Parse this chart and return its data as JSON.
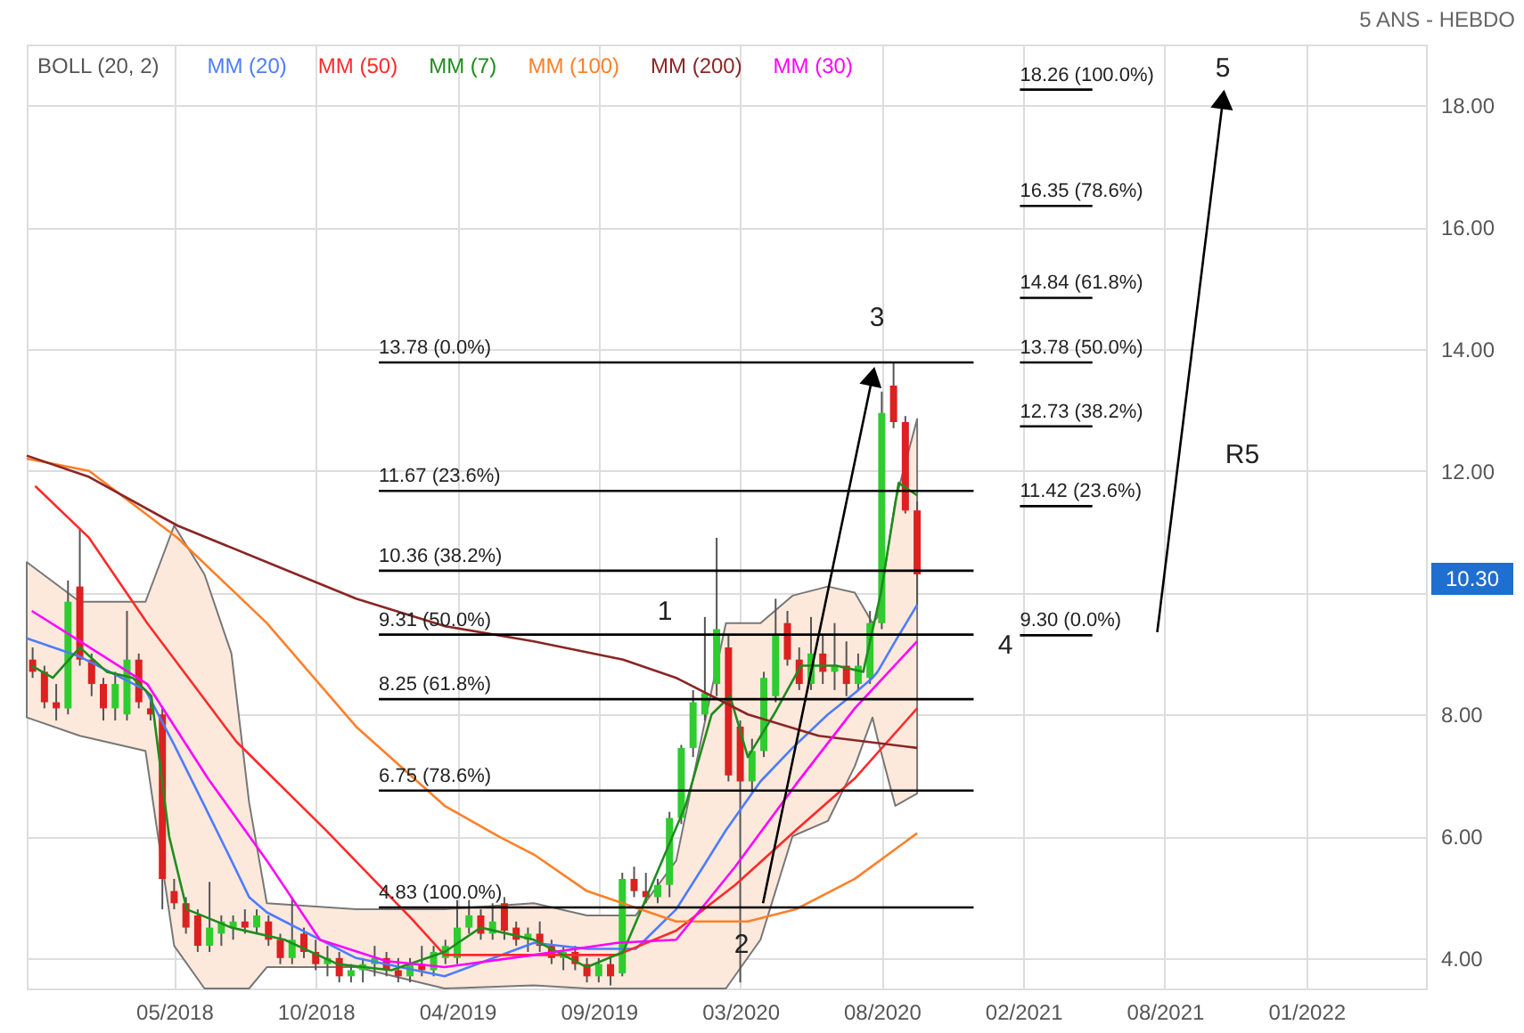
{
  "chart_data": {
    "type": "candlestick",
    "legend": "top left",
    "legend_title": "BOLL (20, 2)",
    "grid": true,
    "xlim": [
      "2017-11-20",
      "2022-06-08"
    ],
    "ylim": [
      3.5,
      19.0
    ],
    "xticks": [
      {
        "value": "2018-05-14",
        "label": "05/2018"
      },
      {
        "value": "2018-10-29",
        "label": "10/2018"
      },
      {
        "value": "2019-04-15",
        "label": "04/2019"
      },
      {
        "value": "2019-09-30",
        "label": "09/2019"
      },
      {
        "value": "2020-03-16",
        "label": "03/2020"
      },
      {
        "value": "2020-08-31",
        "label": "08/2020"
      },
      {
        "value": "2021-02-15",
        "label": "02/2021"
      },
      {
        "value": "2021-08-02",
        "label": "08/2021"
      },
      {
        "value": "2022-01-17",
        "label": "01/2022"
      }
    ],
    "yticks": [
      {
        "value": 4,
        "label": "4.00"
      },
      {
        "value": 6,
        "label": "6.00"
      },
      {
        "value": 8,
        "label": "8.00"
      },
      {
        "value": 10,
        "label": null
      },
      {
        "value": 12,
        "label": "12.00"
      },
      {
        "value": 14,
        "label": "14.00"
      },
      {
        "value": 16,
        "label": "16.00"
      },
      {
        "value": 18,
        "label": "18.00"
      }
    ],
    "x": [
      "2017-11-27",
      "2017-12-11",
      "2017-12-25",
      "2018-01-08",
      "2018-01-22",
      "2018-02-05",
      "2018-02-19",
      "2018-03-05",
      "2018-03-19",
      "2018-04-02",
      "2018-04-16",
      "2018-04-30",
      "2018-05-14",
      "2018-05-28",
      "2018-06-11",
      "2018-06-25",
      "2018-07-09",
      "2018-07-23",
      "2018-08-06",
      "2018-08-20",
      "2018-09-03",
      "2018-09-17",
      "2018-10-01",
      "2018-10-15",
      "2018-10-29",
      "2018-11-12",
      "2018-11-26",
      "2018-12-10",
      "2018-12-24",
      "2019-01-07",
      "2019-01-21",
      "2019-02-04",
      "2019-02-18",
      "2019-03-04",
      "2019-03-18",
      "2019-04-01",
      "2019-04-15",
      "2019-04-29",
      "2019-05-13",
      "2019-05-27",
      "2019-06-10",
      "2019-06-24",
      "2019-07-08",
      "2019-07-22",
      "2019-08-05",
      "2019-08-19",
      "2019-09-02",
      "2019-09-16",
      "2019-09-30",
      "2019-10-14",
      "2019-10-28",
      "2019-11-11",
      "2019-11-25",
      "2019-12-09",
      "2019-12-23",
      "2020-01-06",
      "2020-01-20",
      "2020-02-03",
      "2020-02-17",
      "2020-03-02",
      "2020-03-16",
      "2020-03-30",
      "2020-04-13",
      "2020-04-27",
      "2020-05-11",
      "2020-05-25",
      "2020-06-08",
      "2020-06-22",
      "2020-07-06",
      "2020-07-20",
      "2020-08-03",
      "2020-08-17",
      "2020-08-31",
      "2020-09-14",
      "2020-09-28",
      "2020-10-12"
    ],
    "ohlc": [
      [
        8.9,
        9.1,
        8.6,
        8.7
      ],
      [
        8.7,
        8.8,
        8.1,
        8.2
      ],
      [
        8.2,
        8.5,
        7.9,
        8.1
      ],
      [
        8.1,
        10.2,
        8.0,
        9.85
      ],
      [
        10.1,
        11.05,
        8.8,
        8.9
      ],
      [
        8.9,
        9.0,
        8.3,
        8.5
      ],
      [
        8.5,
        8.6,
        7.9,
        8.1
      ],
      [
        8.1,
        8.7,
        7.9,
        8.5
      ],
      [
        8.0,
        9.7,
        7.9,
        8.9
      ],
      [
        8.9,
        9.0,
        8.1,
        8.2
      ],
      [
        8.1,
        8.3,
        7.9,
        8.0
      ],
      [
        8.0,
        8.1,
        4.8,
        5.3
      ],
      [
        5.1,
        5.3,
        4.8,
        4.9
      ],
      [
        4.9,
        5.0,
        4.4,
        4.5
      ],
      [
        4.7,
        4.8,
        4.1,
        4.2
      ],
      [
        4.2,
        5.25,
        4.1,
        4.5
      ],
      [
        4.4,
        4.7,
        4.2,
        4.6
      ],
      [
        4.5,
        4.7,
        4.3,
        4.6
      ],
      [
        4.6,
        4.8,
        4.4,
        4.5
      ],
      [
        4.5,
        4.8,
        4.4,
        4.7
      ],
      [
        4.6,
        4.7,
        4.2,
        4.3
      ],
      [
        4.3,
        4.4,
        3.9,
        4.0
      ],
      [
        4.0,
        5.0,
        3.9,
        4.3
      ],
      [
        4.4,
        4.5,
        4.0,
        4.1
      ],
      [
        4.1,
        4.3,
        3.8,
        3.9
      ],
      [
        3.9,
        4.2,
        3.7,
        4.0
      ],
      [
        4.0,
        4.1,
        3.6,
        3.7
      ],
      [
        3.7,
        3.9,
        3.6,
        3.8
      ],
      [
        3.8,
        4.0,
        3.6,
        3.9
      ],
      [
        3.9,
        4.2,
        3.7,
        4.0
      ],
      [
        4.0,
        4.1,
        3.7,
        3.8
      ],
      [
        3.8,
        4.0,
        3.6,
        3.7
      ],
      [
        3.7,
        4.0,
        3.6,
        3.9
      ],
      [
        3.9,
        4.2,
        3.7,
        3.8
      ],
      [
        3.8,
        4.2,
        3.7,
        4.1
      ],
      [
        4.0,
        4.3,
        3.9,
        4.2
      ],
      [
        4.0,
        4.95,
        3.9,
        4.5
      ],
      [
        4.5,
        4.95,
        4.4,
        4.7
      ],
      [
        4.7,
        4.8,
        4.3,
        4.4
      ],
      [
        4.4,
        4.9,
        4.3,
        4.6
      ],
      [
        4.9,
        5.0,
        4.3,
        4.45
      ],
      [
        4.5,
        4.6,
        4.2,
        4.3
      ],
      [
        4.3,
        4.5,
        4.1,
        4.4
      ],
      [
        4.4,
        4.6,
        4.1,
        4.2
      ],
      [
        4.2,
        4.3,
        3.9,
        4.0
      ],
      [
        4.0,
        4.2,
        3.8,
        4.1
      ],
      [
        4.1,
        4.2,
        3.8,
        3.9
      ],
      [
        3.9,
        4.0,
        3.6,
        3.7
      ],
      [
        3.7,
        4.0,
        3.6,
        3.9
      ],
      [
        3.9,
        4.0,
        3.55,
        3.7
      ],
      [
        3.75,
        5.4,
        3.7,
        5.3
      ],
      [
        5.3,
        5.5,
        5.0,
        5.1
      ],
      [
        5.1,
        5.4,
        4.9,
        5.0
      ],
      [
        5.0,
        5.3,
        4.9,
        5.2
      ],
      [
        5.2,
        6.4,
        5.0,
        6.3
      ],
      [
        6.3,
        7.5,
        6.2,
        7.45
      ],
      [
        7.45,
        8.4,
        7.3,
        8.2
      ],
      [
        8.0,
        9.6,
        7.9,
        8.35
      ],
      [
        8.5,
        10.9,
        8.3,
        9.4
      ],
      [
        9.1,
        9.3,
        6.9,
        7.0
      ],
      [
        7.8,
        7.9,
        3.6,
        6.9
      ],
      [
        6.9,
        7.6,
        6.7,
        7.4
      ],
      [
        7.4,
        8.7,
        7.3,
        8.6
      ],
      [
        8.3,
        9.9,
        8.2,
        9.3
      ],
      [
        9.5,
        9.7,
        8.8,
        8.9
      ],
      [
        8.9,
        9.1,
        8.4,
        8.5
      ],
      [
        8.5,
        9.6,
        8.4,
        9.0
      ],
      [
        9.0,
        9.3,
        8.5,
        8.7
      ],
      [
        8.7,
        9.5,
        8.4,
        8.8
      ],
      [
        8.8,
        9.2,
        8.3,
        8.5
      ],
      [
        8.5,
        9.0,
        8.4,
        8.8
      ],
      [
        8.6,
        9.7,
        8.5,
        9.5
      ],
      [
        9.5,
        13.3,
        9.4,
        12.95
      ],
      [
        13.4,
        13.78,
        12.7,
        12.8
      ],
      [
        12.8,
        12.9,
        11.3,
        11.35
      ],
      [
        11.35,
        11.5,
        9.8,
        10.3
      ]
    ],
    "series": [
      {
        "name": "MM (20)",
        "type": "line",
        "color": "#4d7cfe",
        "values": [
          9.25,
          8.95,
          8.4,
          7.5,
          6.5,
          5.6,
          5.0,
          4.75,
          4.0,
          3.7,
          4.25,
          4.15,
          4.15,
          4.8,
          5.5,
          6.1,
          6.9,
          7.45,
          8.0,
          8.35,
          8.6,
          8.7,
          9.2,
          9.8
        ],
        "x": [
          "2017-11-20",
          "2018-01-22",
          "2018-04-10",
          "2018-05-14",
          "2018-06-19",
          "2018-07-21",
          "2018-08-11",
          "2018-09-01",
          "2018-12-16",
          "2019-03-31",
          "2019-07-15",
          "2019-09-16",
          "2019-11-13",
          "2019-12-31",
          "2020-02-01",
          "2020-02-28",
          "2020-04-09",
          "2020-05-17",
          "2020-06-28",
          "2020-07-30",
          "2020-08-20",
          "2020-08-26",
          "2020-09-16",
          "2020-10-12"
        ],
        "lower": [
          7.95,
          7.65,
          7.4,
          4.2,
          3.5,
          3.5,
          3.5,
          3.85,
          3.85,
          3.5,
          3.55,
          3.5,
          3.5,
          3.5,
          3.5,
          3.5,
          4.3,
          6.0,
          6.25,
          7.15,
          7.95,
          7.6,
          6.5,
          6.7
        ],
        "upper": [
          10.5,
          9.85,
          9.85,
          11.1,
          10.3,
          9.0,
          6.55,
          4.9,
          4.8,
          4.8,
          4.9,
          4.7,
          4.7,
          5.6,
          7.75,
          9.5,
          9.5,
          9.95,
          10.1,
          10.0,
          9.5,
          9.6,
          11.5,
          12.85
        ]
      },
      {
        "name": "MM (50)",
        "type": "line",
        "color": "#ff2a2a",
        "x": [
          "2017-11-30",
          "2018-02-02",
          "2018-04-12",
          "2018-07-27",
          "2018-11-10",
          "2019-02-23",
          "2019-03-31",
          "2019-07-15",
          "2019-10-22",
          "2019-12-31",
          "2020-03-10",
          "2020-05-21",
          "2020-07-30",
          "2020-10-12"
        ],
        "values": [
          11.75,
          10.9,
          9.5,
          7.55,
          6.1,
          4.6,
          4.05,
          4.05,
          4.05,
          4.45,
          5.2,
          6.1,
          6.95,
          8.1
        ]
      },
      {
        "name": "MM (7)",
        "type": "line",
        "color": "#1e8c1e",
        "x": [
          "2017-11-26",
          "2017-12-21",
          "2018-01-22",
          "2018-02-23",
          "2018-03-26",
          "2018-04-17",
          "2018-05-08",
          "2018-05-29",
          "2018-07-21",
          "2018-09-22",
          "2018-11-24",
          "2019-01-27",
          "2019-03-31",
          "2019-05-13",
          "2019-07-15",
          "2019-09-16",
          "2019-10-29",
          "2019-11-29",
          "2020-01-11",
          "2020-02-11",
          "2020-03-04",
          "2020-03-25",
          "2020-04-25",
          "2020-05-27",
          "2020-07-08",
          "2020-08-09",
          "2020-08-30",
          "2020-09-20",
          "2020-10-12"
        ],
        "values": [
          8.8,
          8.6,
          9.1,
          8.7,
          8.6,
          8.3,
          6.0,
          4.8,
          4.5,
          4.3,
          3.9,
          3.8,
          4.1,
          4.5,
          4.3,
          3.85,
          4.1,
          5.1,
          6.5,
          8.0,
          8.3,
          7.3,
          8.0,
          8.8,
          8.8,
          8.7,
          10.0,
          11.8,
          11.6
        ]
      },
      {
        "name": "MM (100)",
        "type": "line",
        "color": "#ff7f27",
        "x": [
          "2017-11-20",
          "2018-02-02",
          "2018-05-18",
          "2018-09-01",
          "2018-12-16",
          "2019-03-31",
          "2019-06-03",
          "2019-07-15",
          "2019-09-16",
          "2019-12-31",
          "2020-03-25",
          "2020-05-21",
          "2020-07-30",
          "2020-10-12"
        ],
        "values": [
          12.2,
          12.0,
          10.9,
          9.5,
          7.8,
          6.5,
          6.0,
          5.7,
          5.1,
          4.6,
          4.6,
          4.8,
          5.3,
          6.05
        ]
      },
      {
        "name": "MM (200)",
        "type": "line",
        "color": "#8b2525",
        "x": [
          "2017-11-20",
          "2018-02-02",
          "2018-05-18",
          "2018-09-01",
          "2018-12-16",
          "2019-03-31",
          "2019-07-15",
          "2019-10-29",
          "2019-12-31",
          "2020-03-25",
          "2020-06-17",
          "2020-10-12"
        ],
        "values": [
          12.25,
          11.9,
          11.1,
          10.5,
          9.9,
          9.45,
          9.2,
          8.9,
          8.6,
          8.0,
          7.65,
          7.45
        ]
      },
      {
        "name": "MM (30)",
        "type": "line",
        "color": "#ff00ff",
        "x": [
          "2017-11-26",
          "2018-01-11",
          "2018-04-12",
          "2018-06-23",
          "2018-09-01",
          "2018-11-03",
          "2019-01-21",
          "2019-03-31",
          "2019-07-15",
          "2019-10-22",
          "2019-12-31",
          "2020-03-10",
          "2020-05-21",
          "2020-07-30",
          "2020-10-12"
        ],
        "values": [
          9.7,
          9.3,
          8.5,
          6.95,
          5.6,
          4.3,
          3.95,
          3.85,
          4.05,
          4.25,
          4.3,
          5.5,
          6.85,
          8.1,
          9.2
        ]
      },
      {
        "type": "line",
        "color": "#000000",
        "x": [
          "2019-01-12",
          "2020-12-18"
        ],
        "values": [
          13.78,
          13.78
        ]
      },
      {
        "type": "line",
        "color": "#000000",
        "x": [
          "2019-01-12",
          "2020-12-18"
        ],
        "values": [
          11.67,
          11.67
        ]
      },
      {
        "type": "line",
        "color": "#000000",
        "x": [
          "2019-01-12",
          "2020-12-18"
        ],
        "values": [
          10.36,
          10.36
        ]
      },
      {
        "type": "line",
        "color": "#000000",
        "x": [
          "2019-01-12",
          "2020-12-18"
        ],
        "values": [
          9.31,
          9.31
        ]
      },
      {
        "type": "line",
        "color": "#000000",
        "x": [
          "2019-01-12",
          "2020-12-18"
        ],
        "values": [
          8.25,
          8.25
        ]
      },
      {
        "type": "line",
        "color": "#000000",
        "x": [
          "2019-01-12",
          "2020-12-18"
        ],
        "values": [
          6.75,
          6.75
        ]
      },
      {
        "type": "line",
        "color": "#000000",
        "x": [
          "2019-01-12",
          "2020-12-18"
        ],
        "values": [
          4.83,
          4.83
        ]
      },
      {
        "type": "line",
        "color": "#000000",
        "x": [
          "2021-02-11",
          "2021-05-08"
        ],
        "values": [
          18.26,
          18.26
        ]
      },
      {
        "type": "line",
        "color": "#000000",
        "x": [
          "2021-02-11",
          "2021-05-08"
        ],
        "values": [
          16.35,
          16.35
        ]
      },
      {
        "type": "line",
        "color": "#000000",
        "x": [
          "2021-02-11",
          "2021-05-08"
        ],
        "values": [
          14.84,
          14.84
        ]
      },
      {
        "type": "line",
        "color": "#000000",
        "x": [
          "2021-02-11",
          "2021-05-08"
        ],
        "values": [
          13.78,
          13.78
        ]
      },
      {
        "type": "line",
        "color": "#000000",
        "x": [
          "2021-02-11",
          "2021-05-08"
        ],
        "values": [
          12.73,
          12.73
        ]
      },
      {
        "type": "line",
        "color": "#000000",
        "x": [
          "2021-02-11",
          "2021-05-08"
        ],
        "values": [
          11.42,
          11.42
        ]
      },
      {
        "type": "line",
        "color": "#000000",
        "x": [
          "2021-02-11",
          "2021-05-08"
        ],
        "values": [
          9.3,
          9.3
        ]
      },
      {
        "type": "line",
        "color": "#000000",
        "marker": "triangle",
        "x": [
          "2020-04-12",
          "2020-08-20"
        ],
        "values": [
          4.9,
          13.55
        ]
      },
      {
        "type": "line",
        "color": "#000000",
        "marker": "triangle",
        "x": [
          "2021-07-24",
          "2021-10-10"
        ],
        "values": [
          9.35,
          18.1
        ]
      }
    ],
    "annotations": [
      "5 ANS - HEBDO",
      "10.30",
      "1",
      "2",
      "3",
      "4",
      "5",
      "R5",
      {
        "text": "13.78 (0.0%)",
        "x": "2019-01-12",
        "y": 13.78
      },
      {
        "text": "11.67 (23.6%)",
        "x": "2019-01-12",
        "y": 11.67
      },
      {
        "text": "10.36 (38.2%)",
        "x": "2019-01-12",
        "y": 10.36
      },
      {
        "text": "9.31 (50.0%)",
        "x": "2019-01-12",
        "y": 9.31
      },
      {
        "text": "8.25 (61.8%)",
        "x": "2019-01-12",
        "y": 8.25
      },
      {
        "text": "6.75 (78.6%)",
        "x": "2019-01-12",
        "y": 6.75
      },
      {
        "text": "4.83 (100.0%)",
        "x": "2019-01-12",
        "y": 4.83
      },
      {
        "text": "18.26 (100.0%)",
        "x": "2021-02-11",
        "y": 18.26
      },
      {
        "text": "16.35 (78.6%)",
        "x": "2021-02-11",
        "y": 16.35
      },
      {
        "text": "14.84 (61.8%)",
        "x": "2021-02-11",
        "y": 14.84
      },
      {
        "text": "13.78 (50.0%)",
        "x": "2021-02-11",
        "y": 13.78
      },
      {
        "text": "12.73 (38.2%)",
        "x": "2021-02-11",
        "y": 12.73
      },
      {
        "text": "11.42 (23.6%)",
        "x": "2021-02-11",
        "y": 11.42
      },
      {
        "text": "9.30 (0.0%)",
        "x": "2021-02-11",
        "y": 9.3
      }
    ]
  }
}
